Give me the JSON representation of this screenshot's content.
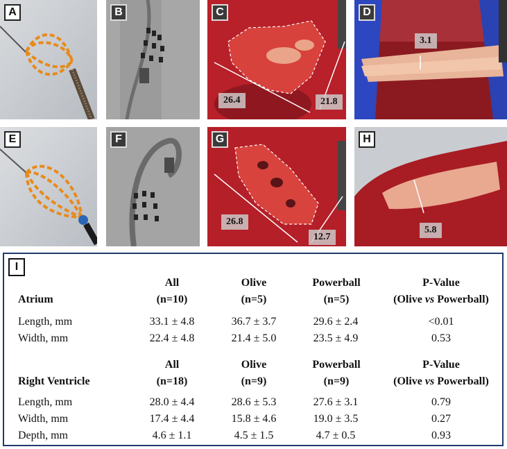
{
  "panels": {
    "A": {
      "label": "A"
    },
    "B": {
      "label": "B"
    },
    "C": {
      "label": "C",
      "length": "26.4",
      "width": "21.8"
    },
    "D": {
      "label": "D",
      "depth": "3.1"
    },
    "E": {
      "label": "E"
    },
    "F": {
      "label": "F"
    },
    "G": {
      "label": "G",
      "length": "26.8",
      "width": "12.7"
    },
    "H": {
      "label": "H",
      "depth": "5.8"
    }
  },
  "table": {
    "label": "I",
    "atrium": {
      "section": "Atrium",
      "headers": [
        {
          "name": "All",
          "n": "(n=10)"
        },
        {
          "name": "Olive",
          "n": "(n=5)"
        },
        {
          "name": "Powerball",
          "n": "(n=5)"
        },
        {
          "name": "P-Value",
          "n_pre": "(Olive ",
          "n_vs": "vs",
          "n_post": " Powerball)"
        }
      ],
      "rows": [
        {
          "label": "Length, mm",
          "all": "33.1 ± 4.8",
          "olive": "36.7 ± 3.7",
          "powerball": "29.6 ± 2.4",
          "p": "<0.01"
        },
        {
          "label": "Width, mm",
          "all": "22.4 ± 4.8",
          "olive": "21.4 ± 5.0",
          "powerball": "23.5 ± 4.9",
          "p": "0.53"
        }
      ]
    },
    "ventricle": {
      "section": "Right Ventricle",
      "headers": [
        {
          "name": "All",
          "n": "(n=18)"
        },
        {
          "name": "Olive",
          "n": "(n=9)"
        },
        {
          "name": "Powerball",
          "n": "(n=9)"
        },
        {
          "name": "P-Value",
          "n_pre": "(Olive ",
          "n_vs": "vs",
          "n_post": " Powerball)"
        }
      ],
      "rows": [
        {
          "label": "Length, mm",
          "all": "28.0 ± 4.4",
          "olive": "28.6 ± 5.3",
          "powerball": "27.6 ± 3.1",
          "p": "0.79"
        },
        {
          "label": "Width, mm",
          "all": "17.4 ± 4.4",
          "olive": "15.8 ± 4.6",
          "powerball": "19.0 ± 3.5",
          "p": "0.27"
        },
        {
          "label": "Depth, mm",
          "all": "4.6 ± 1.1",
          "olive": "4.5 ± 1.5",
          "powerball": "4.7 ± 0.5",
          "p": "0.93"
        }
      ]
    }
  }
}
